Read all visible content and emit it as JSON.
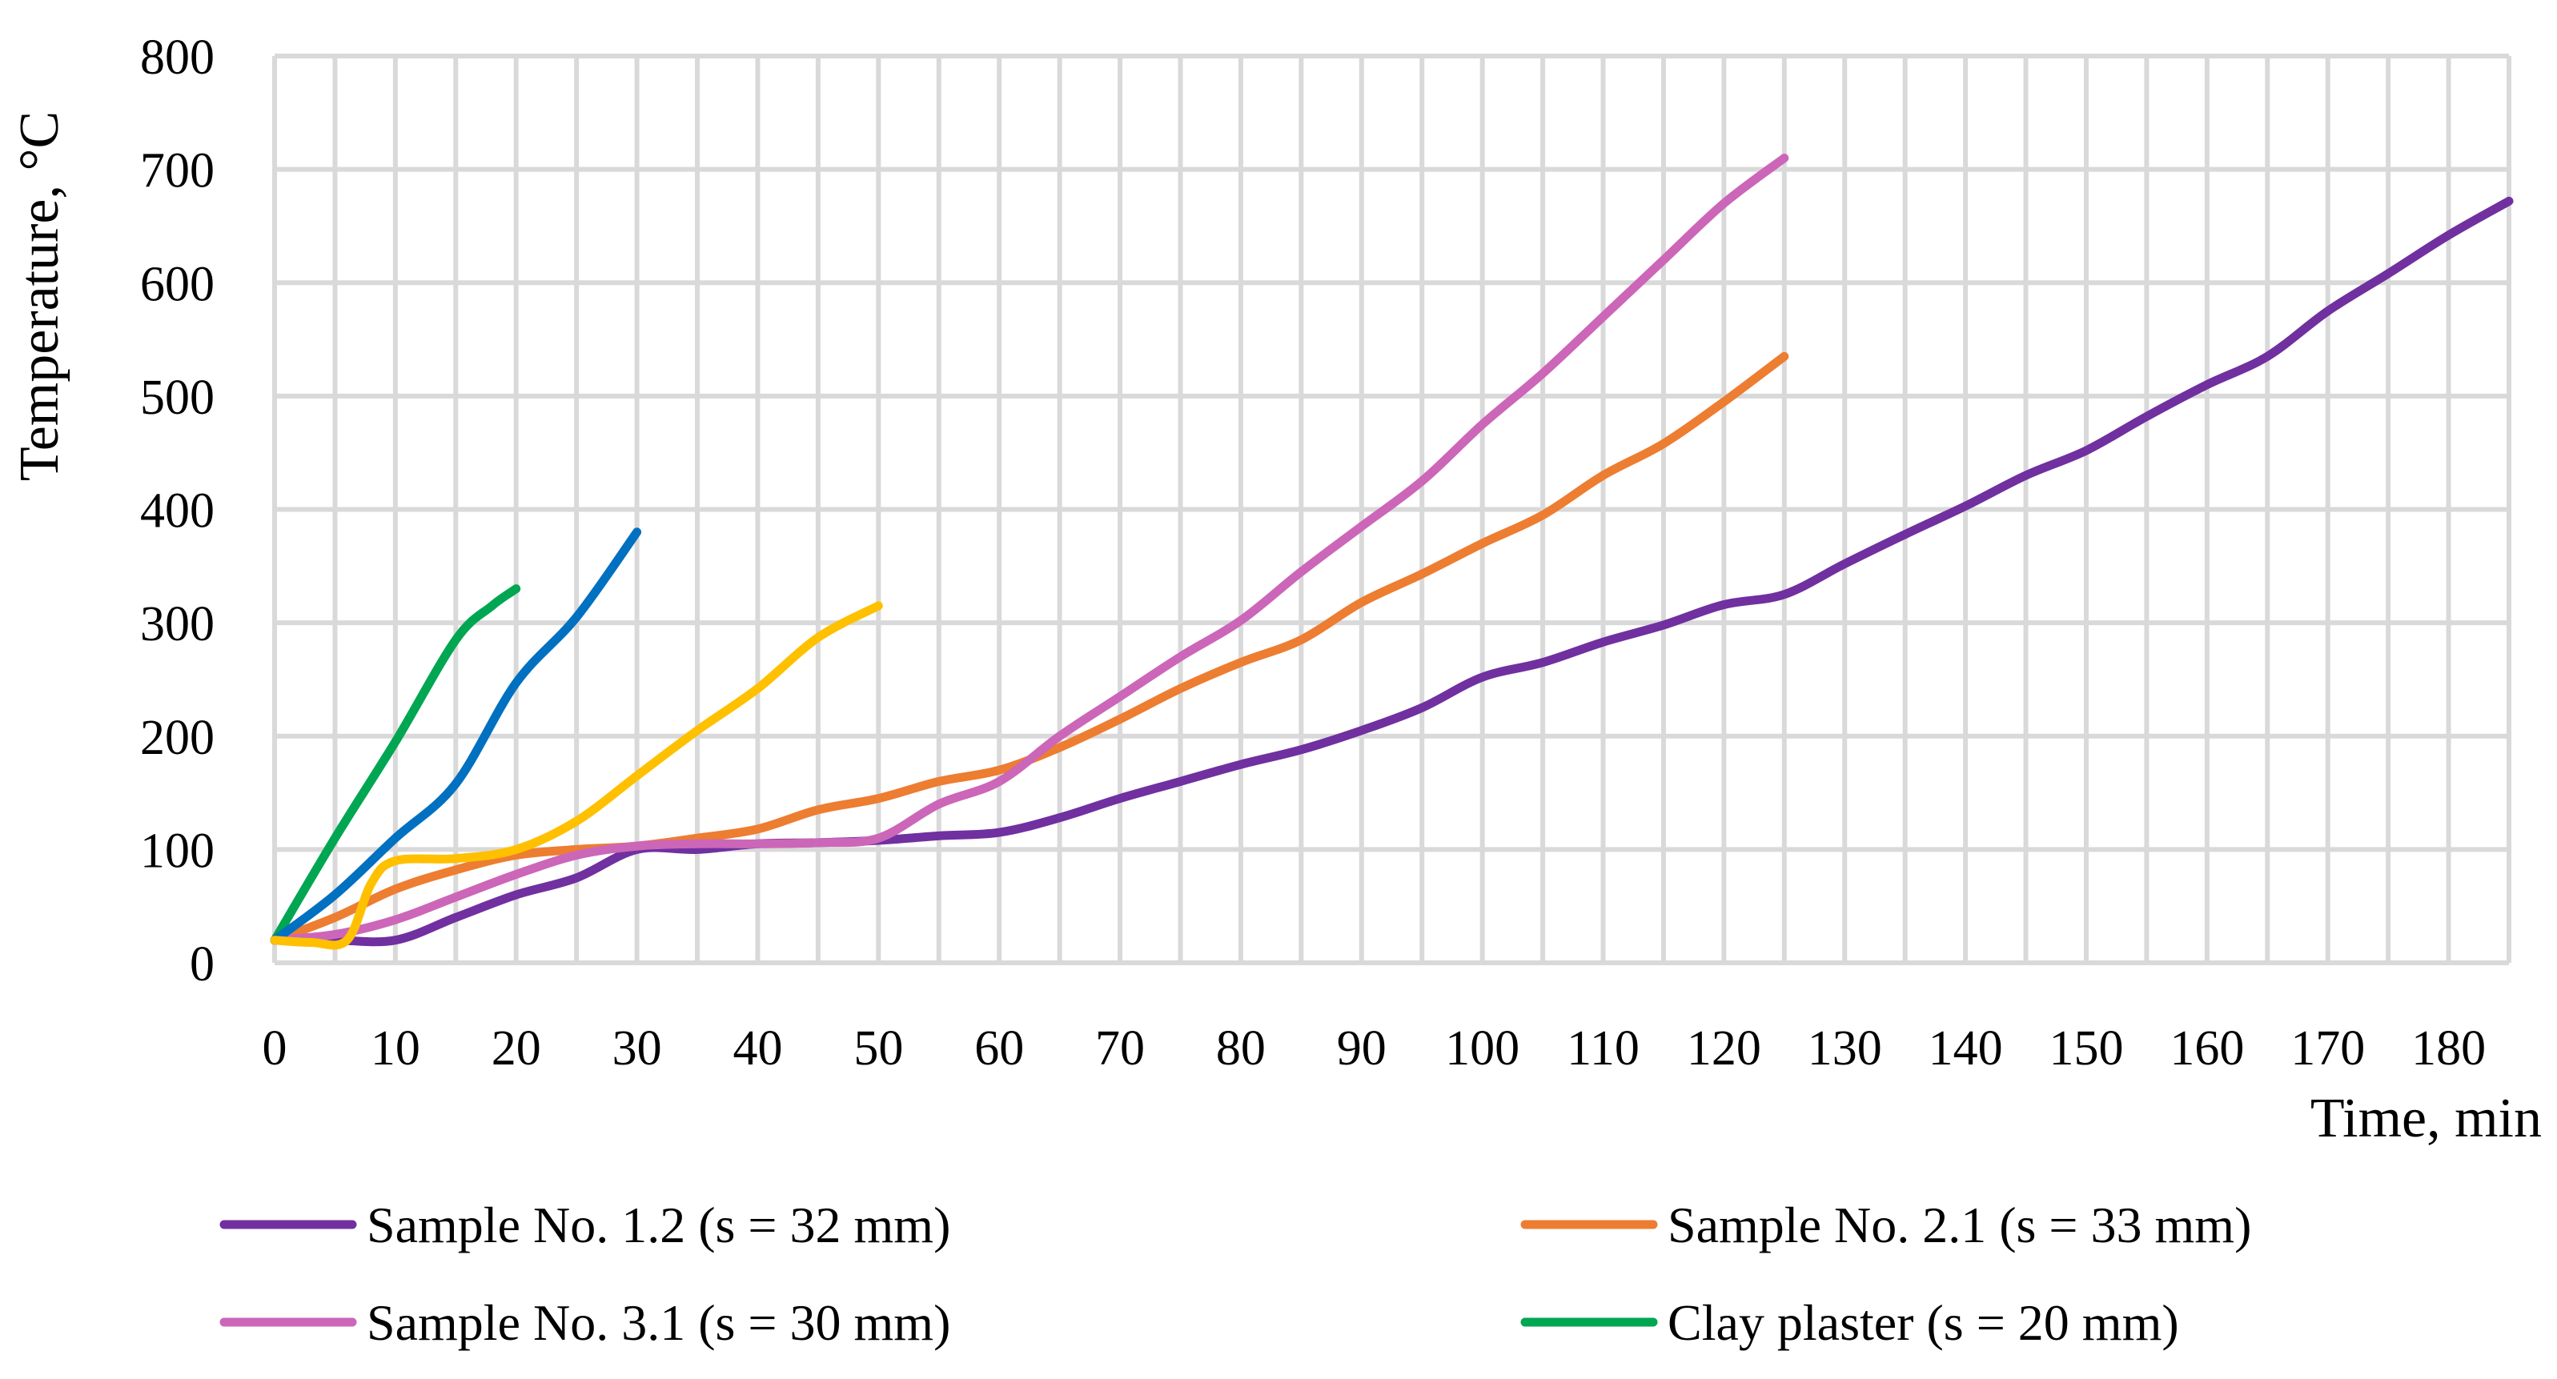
{
  "chart_data": {
    "type": "line",
    "title": "",
    "xlabel": "Time, min",
    "ylabel": "Temperature, °C",
    "xlim": [
      0,
      185
    ],
    "ylim": [
      0,
      800
    ],
    "x_ticks": [
      0,
      10,
      20,
      30,
      40,
      50,
      60,
      70,
      80,
      90,
      100,
      110,
      120,
      130,
      140,
      150,
      160,
      170,
      180
    ],
    "y_ticks": [
      0,
      100,
      200,
      300,
      400,
      500,
      600,
      700,
      800
    ],
    "grid": true,
    "legend_position": "bottom",
    "series": [
      {
        "name": "Sample No. 1.2 (s = 32 mm)",
        "color": "#7030a0",
        "in_legend": true,
        "x": [
          0,
          5,
          10,
          15,
          20,
          25,
          30,
          35,
          40,
          45,
          50,
          55,
          60,
          65,
          70,
          75,
          80,
          85,
          90,
          95,
          100,
          105,
          110,
          115,
          120,
          125,
          130,
          135,
          140,
          145,
          150,
          155,
          160,
          165,
          170,
          175,
          180,
          185
        ],
        "y": [
          20,
          20,
          20,
          40,
          60,
          75,
          100,
          100,
          105,
          106,
          108,
          112,
          115,
          128,
          145,
          160,
          175,
          188,
          205,
          225,
          252,
          265,
          283,
          298,
          316,
          325,
          352,
          378,
          403,
          430,
          452,
          482,
          510,
          535,
          575,
          608,
          642,
          672
        ]
      },
      {
        "name": "Sample No. 2.1 (s = 33 mm)",
        "color": "#ed7d31",
        "in_legend": true,
        "x": [
          0,
          5,
          10,
          15,
          20,
          25,
          30,
          35,
          40,
          45,
          50,
          55,
          60,
          65,
          70,
          75,
          80,
          85,
          90,
          95,
          100,
          105,
          110,
          115,
          120,
          125
        ],
        "y": [
          20,
          40,
          65,
          82,
          95,
          100,
          103,
          110,
          118,
          135,
          145,
          160,
          170,
          190,
          215,
          242,
          265,
          285,
          318,
          343,
          370,
          395,
          430,
          458,
          495,
          535
        ]
      },
      {
        "name": "Sample No. 3.1 (s = 30 mm)",
        "color": "#cc66b8",
        "in_legend": true,
        "x": [
          0,
          5,
          10,
          15,
          20,
          25,
          30,
          35,
          40,
          45,
          50,
          55,
          60,
          65,
          70,
          75,
          80,
          85,
          90,
          95,
          100,
          105,
          110,
          115,
          120,
          125
        ],
        "y": [
          20,
          25,
          38,
          58,
          78,
          95,
          103,
          105,
          105,
          106,
          110,
          140,
          160,
          200,
          235,
          270,
          302,
          345,
          385,
          425,
          475,
          520,
          570,
          620,
          670,
          710
        ]
      },
      {
        "name": "Clay plaster (s = 20 mm)",
        "color": "#00a651",
        "in_legend": true,
        "x": [
          0,
          5,
          10,
          15,
          18,
          20
        ],
        "y": [
          20,
          110,
          195,
          285,
          315,
          330
        ]
      },
      {
        "name": "",
        "color": "#0070c0",
        "in_legend": false,
        "x": [
          0,
          5,
          10,
          15,
          20,
          25,
          30
        ],
        "y": [
          20,
          60,
          110,
          158,
          247,
          305,
          380
        ]
      },
      {
        "name": "",
        "color": "#ffc000",
        "in_legend": false,
        "x": [
          0,
          3,
          6,
          8,
          10,
          15,
          20,
          25,
          30,
          35,
          40,
          45,
          50
        ],
        "y": [
          20,
          18,
          20,
          70,
          90,
          92,
          100,
          125,
          165,
          205,
          242,
          287,
          315
        ]
      }
    ]
  }
}
